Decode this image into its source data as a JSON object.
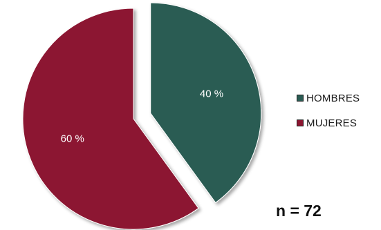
{
  "chart_data": {
    "type": "pie",
    "slices": [
      {
        "label": "HOMBRES",
        "value": 40,
        "value_label": "40 %",
        "color": "#2a5b53",
        "exploded": true
      },
      {
        "label": "MUJERES",
        "value": 60,
        "value_label": "60 %",
        "color": "#8c1530",
        "exploded": false
      }
    ],
    "legend_placement": "right",
    "annotation": "n = 72"
  }
}
